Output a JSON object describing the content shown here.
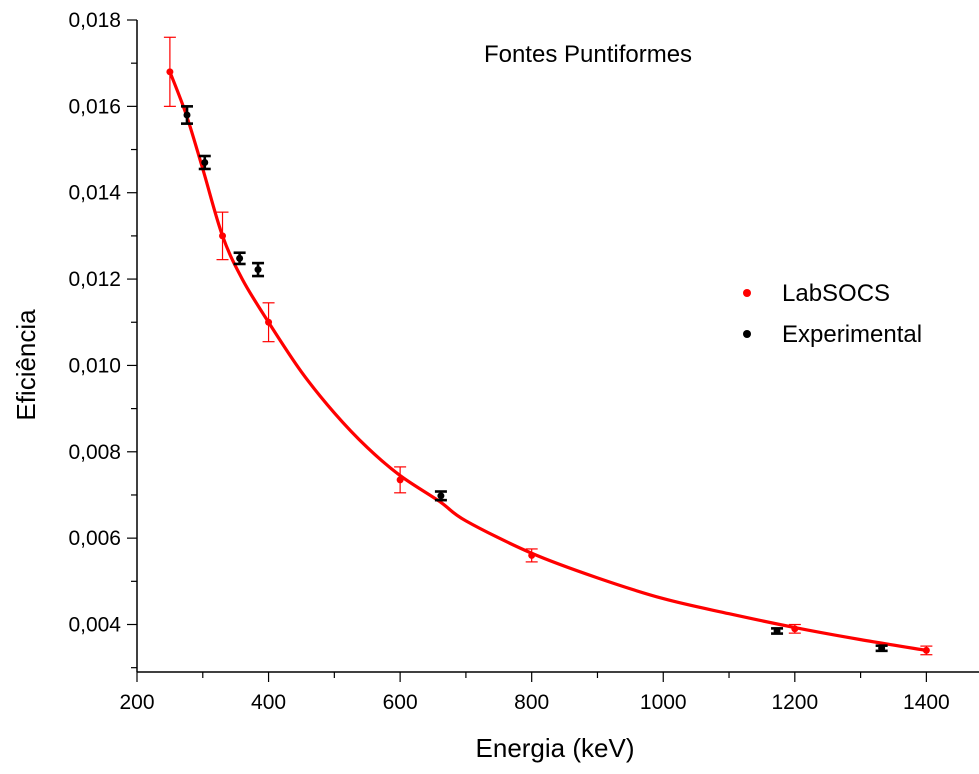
{
  "chart_data": {
    "type": "scatter",
    "title": "Fontes Puntiformes",
    "xlabel": "Energia (keV)",
    "ylabel": "Eficiência",
    "xlim": [
      200,
      1480
    ],
    "ylim": [
      0.0029,
      0.018
    ],
    "x_ticks": [
      {
        "value": 200,
        "label": "200"
      },
      {
        "value": 400,
        "label": "400"
      },
      {
        "value": 600,
        "label": "600"
      },
      {
        "value": 800,
        "label": "800"
      },
      {
        "value": 1000,
        "label": "1000"
      },
      {
        "value": 1200,
        "label": "1200"
      },
      {
        "value": 1400,
        "label": "1400"
      }
    ],
    "y_ticks": [
      {
        "value": 0.004,
        "label": "0,004"
      },
      {
        "value": 0.006,
        "label": "0,006"
      },
      {
        "value": 0.008,
        "label": "0,008"
      },
      {
        "value": 0.01,
        "label": "0,010"
      },
      {
        "value": 0.012,
        "label": "0,012"
      },
      {
        "value": 0.014,
        "label": "0,014"
      },
      {
        "value": 0.016,
        "label": "0,016"
      },
      {
        "value": 0.018,
        "label": "0,018"
      }
    ],
    "grid": false,
    "legend_position": "right",
    "series": [
      {
        "name": "LabSOCS",
        "color": "#ff0000",
        "points": [
          {
            "x": 250,
            "y": 0.0168,
            "err": 0.0008
          },
          {
            "x": 330,
            "y": 0.013,
            "err": 0.00055
          },
          {
            "x": 400,
            "y": 0.011,
            "err": 0.00045
          },
          {
            "x": 600,
            "y": 0.00735,
            "err": 0.0003
          },
          {
            "x": 800,
            "y": 0.0056,
            "err": 0.00015
          },
          {
            "x": 1200,
            "y": 0.0039,
            "err": 0.0001
          },
          {
            "x": 1400,
            "y": 0.0034,
            "err": 0.0001
          }
        ]
      },
      {
        "name": "Experimental",
        "color": "#000000",
        "points": [
          {
            "x": 276,
            "y": 0.0158,
            "err": 0.0002
          },
          {
            "x": 303,
            "y": 0.0147,
            "err": 0.00015
          },
          {
            "x": 356,
            "y": 0.01248,
            "err": 0.00013
          },
          {
            "x": 384,
            "y": 0.01222,
            "err": 0.00015
          },
          {
            "x": 662,
            "y": 0.00698,
            "err": 0.0001
          },
          {
            "x": 1173,
            "y": 0.00385,
            "err": 6e-05
          },
          {
            "x": 1332,
            "y": 0.00345,
            "err": 6e-05
          }
        ]
      }
    ],
    "fit": {
      "color": "#ff0000",
      "points": [
        {
          "x": 250,
          "y": 0.0168
        },
        {
          "x": 275,
          "y": 0.0158
        },
        {
          "x": 300,
          "y": 0.01455
        },
        {
          "x": 330,
          "y": 0.013
        },
        {
          "x": 360,
          "y": 0.012
        },
        {
          "x": 400,
          "y": 0.011
        },
        {
          "x": 450,
          "y": 0.00985
        },
        {
          "x": 500,
          "y": 0.0089
        },
        {
          "x": 550,
          "y": 0.0081
        },
        {
          "x": 600,
          "y": 0.00745
        },
        {
          "x": 660,
          "y": 0.00685
        },
        {
          "x": 700,
          "y": 0.0064
        },
        {
          "x": 800,
          "y": 0.00565
        },
        {
          "x": 900,
          "y": 0.00508
        },
        {
          "x": 1000,
          "y": 0.0046
        },
        {
          "x": 1100,
          "y": 0.00425
        },
        {
          "x": 1200,
          "y": 0.00393
        },
        {
          "x": 1300,
          "y": 0.00365
        },
        {
          "x": 1400,
          "y": 0.0034
        }
      ]
    }
  }
}
